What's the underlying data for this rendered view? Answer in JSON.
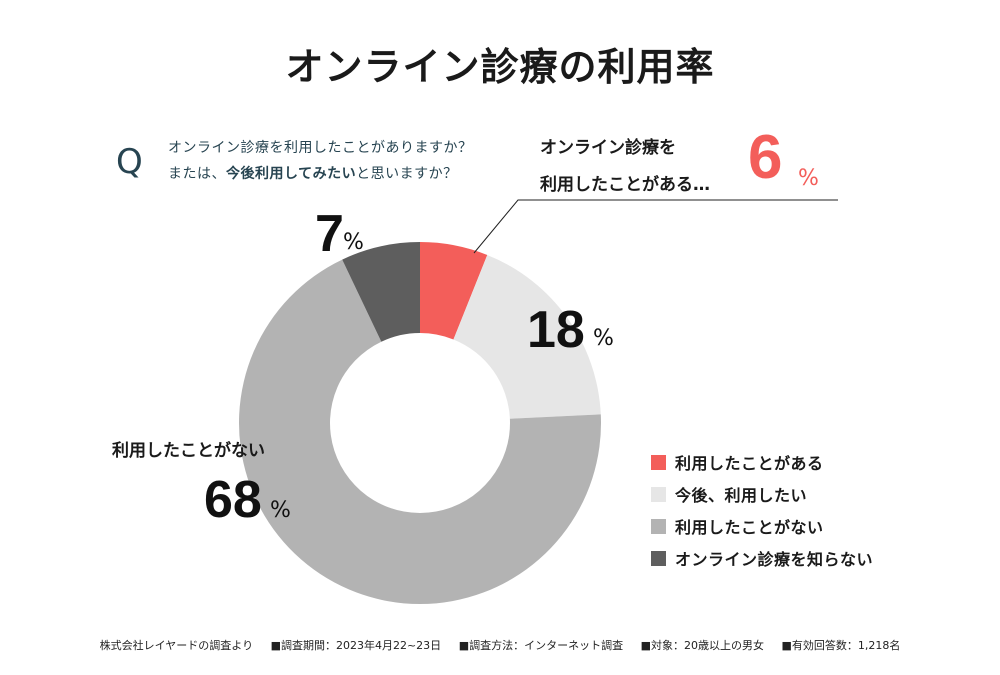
{
  "title": "オンライン診療の利用率",
  "question": {
    "mark": "Q",
    "line1": "オンライン診療を利用したことがありますか？",
    "line2_prefix": "または、",
    "line2_bold": "今後利用してみたい",
    "line2_suffix": "と思いますか？"
  },
  "callout": {
    "line1": "オンライン診療を",
    "line2": "利用したことがある…",
    "value": "6",
    "unit": "%"
  },
  "side_label": "利用したことがない",
  "footer": [
    "株式会社レイヤードの調査より",
    "■調査期間：2023年4月22~23日",
    "■調査方法：インターネット調査",
    "■対象：20歳以上の男女",
    "■有効回答数：1,218名"
  ],
  "chart_data": {
    "type": "pie",
    "title": "オンライン診療の利用率",
    "donut": true,
    "start_angle": "top",
    "direction": "clockwise",
    "unit": "%",
    "legend_position": "bottom-right",
    "categories": [
      "利用したことがある",
      "今後、利用したい",
      "利用したことがない",
      "オンライン診療を知らない"
    ],
    "values": [
      6,
      18,
      68,
      7
    ],
    "colors": [
      "#f35e5a",
      "#e6e6e6",
      "#b3b3b3",
      "#5e5e5e"
    ],
    "data_labels": [
      "6",
      "18",
      "68",
      "7"
    ]
  }
}
